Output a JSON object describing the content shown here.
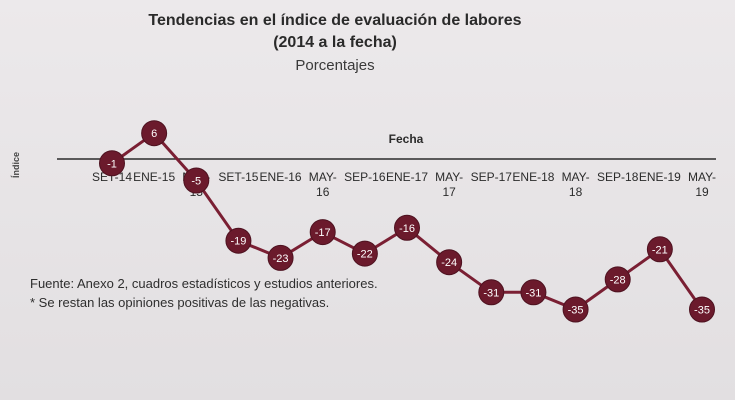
{
  "chart_data": {
    "type": "line",
    "title": "Tendencias en el índice de evaluación de labores",
    "subtitle": "(2014 a la fecha)",
    "unit_label": "Porcentajes",
    "ylabel": "Índice",
    "xlabel": "Fecha",
    "categories": [
      "SET-14",
      "ENE-15",
      "MAY-15",
      "SET-15",
      "ENE-16",
      "MAY-16",
      "SEP-16",
      "ENE-17",
      "MAY-17",
      "SEP-17",
      "ENE-18",
      "MAY-18",
      "SEP-18",
      "ENE-19",
      "MAY-19"
    ],
    "tick_labels": [
      [
        "SET-14"
      ],
      [
        "ENE-15"
      ],
      [
        "MAY-",
        "15"
      ],
      [
        "SET-15"
      ],
      [
        "ENE-16"
      ],
      [
        "MAY-",
        "16"
      ],
      [
        "SEP-16"
      ],
      [
        "ENE-17"
      ],
      [
        "MAY-",
        "17"
      ],
      [
        "SEP-17"
      ],
      [
        "ENE-18"
      ],
      [
        "MAY-",
        "18"
      ],
      [
        "SEP-18"
      ],
      [
        "ENE-19"
      ],
      [
        "MAY-",
        "19"
      ]
    ],
    "values": [
      -1,
      6,
      -5,
      -19,
      -23,
      -17,
      -22,
      -16,
      -24,
      -31,
      -31,
      -35,
      -28,
      -21,
      -35
    ],
    "ylim": [
      -40,
      10
    ],
    "grid": false,
    "legend": "none",
    "line_color": "#7a1f33",
    "marker_color": "#6b1a2c"
  },
  "notes": {
    "source": "Fuente: Anexo 2, cuadros estadísticos y estudios anteriores.",
    "footnote": "* Se restan las opiniones positivas de las negativas."
  }
}
